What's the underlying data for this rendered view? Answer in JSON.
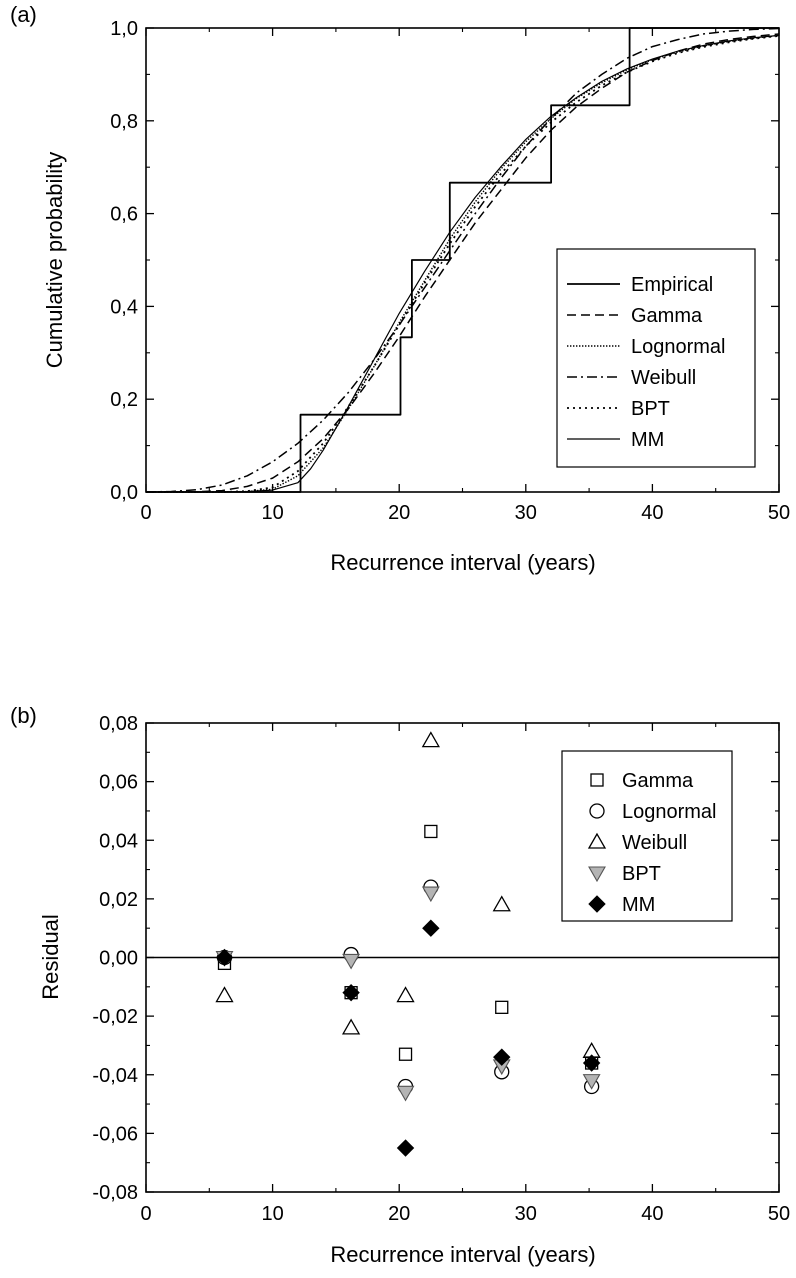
{
  "chart_data": [
    {
      "panel": "(a)",
      "type": "line",
      "xlabel": "Recurrence interval (years)",
      "ylabel": "Cumulative probability",
      "xlim": [
        0,
        50
      ],
      "ylim": [
        0,
        1
      ],
      "xticks": [
        0,
        10,
        20,
        30,
        40,
        50
      ],
      "xtick_labels": [
        "0",
        "10",
        "20",
        "30",
        "40",
        "50"
      ],
      "yticks": [
        0,
        0.2,
        0.4,
        0.6,
        0.8,
        1.0
      ],
      "ytick_labels": [
        "0,0",
        "0,2",
        "0,4",
        "0,6",
        "0,8",
        "1,0"
      ],
      "legend_position": "right",
      "series": [
        {
          "name": "Empirical",
          "style": "step",
          "x": [
            0,
            12.2,
            12.2,
            20.1,
            20.1,
            21,
            21,
            24,
            24,
            32,
            32,
            38.2,
            38.2,
            50
          ],
          "y": [
            0,
            0,
            0.1667,
            0.1667,
            0.3333,
            0.3333,
            0.5,
            0.5,
            0.6667,
            0.6667,
            0.8333,
            0.8333,
            1.0,
            1.0
          ]
        },
        {
          "name": "Gamma",
          "style": "dash",
          "x": [
            0,
            4,
            6,
            8,
            10,
            12,
            14,
            16,
            18,
            20,
            22,
            24,
            26,
            28,
            30,
            32,
            34,
            36,
            38,
            40,
            42,
            44,
            46,
            48,
            50
          ],
          "y": [
            0,
            0.0005,
            0.003,
            0.012,
            0.03,
            0.065,
            0.115,
            0.18,
            0.255,
            0.335,
            0.42,
            0.5,
            0.58,
            0.65,
            0.72,
            0.78,
            0.83,
            0.87,
            0.905,
            0.93,
            0.95,
            0.965,
            0.975,
            0.982,
            0.987
          ]
        },
        {
          "name": "Lognormal",
          "style": "dot-fine",
          "x": [
            0,
            6,
            8,
            10,
            12,
            14,
            16,
            18,
            20,
            22,
            24,
            26,
            28,
            30,
            32,
            34,
            36,
            38,
            40,
            42,
            44,
            46,
            48,
            50
          ],
          "y": [
            0,
            0,
            0.001,
            0.006,
            0.035,
            0.095,
            0.18,
            0.27,
            0.365,
            0.455,
            0.545,
            0.625,
            0.695,
            0.755,
            0.805,
            0.848,
            0.882,
            0.91,
            0.932,
            0.948,
            0.961,
            0.971,
            0.978,
            0.984
          ]
        },
        {
          "name": "Weibull",
          "style": "dash-dot",
          "x": [
            0,
            2,
            4,
            6,
            8,
            10,
            12,
            14,
            16,
            18,
            20,
            22,
            24,
            26,
            28,
            30,
            32,
            34,
            36,
            38,
            40,
            42,
            44,
            46,
            48,
            50
          ],
          "y": [
            0,
            0.001,
            0.005,
            0.015,
            0.035,
            0.065,
            0.105,
            0.155,
            0.215,
            0.285,
            0.36,
            0.44,
            0.52,
            0.6,
            0.675,
            0.745,
            0.805,
            0.86,
            0.9,
            0.935,
            0.96,
            0.975,
            0.987,
            0.993,
            0.997,
            0.999
          ]
        },
        {
          "name": "BPT",
          "style": "dot",
          "x": [
            0,
            6,
            8,
            10,
            12,
            14,
            16,
            18,
            20,
            22,
            24,
            26,
            28,
            30,
            32,
            34,
            36,
            38,
            40,
            42,
            44,
            46,
            48,
            50
          ],
          "y": [
            0,
            0,
            0.002,
            0.01,
            0.045,
            0.105,
            0.185,
            0.27,
            0.36,
            0.45,
            0.535,
            0.615,
            0.685,
            0.745,
            0.797,
            0.84,
            0.876,
            0.905,
            0.928,
            0.946,
            0.959,
            0.969,
            0.977,
            0.983
          ]
        },
        {
          "name": "MM",
          "style": "solid-thin",
          "x": [
            0,
            6,
            8,
            10,
            12,
            13,
            14,
            16,
            18,
            20,
            22,
            24,
            26,
            28,
            30,
            32,
            34,
            36,
            38,
            40,
            42,
            44,
            46,
            48,
            50
          ],
          "y": [
            0,
            0,
            0.001,
            0.004,
            0.02,
            0.05,
            0.09,
            0.185,
            0.285,
            0.385,
            0.475,
            0.56,
            0.635,
            0.7,
            0.76,
            0.81,
            0.85,
            0.885,
            0.912,
            0.933,
            0.95,
            0.962,
            0.972,
            0.979,
            0.984
          ]
        }
      ]
    },
    {
      "panel": "(b)",
      "type": "scatter",
      "xlabel": "Recurrence interval (years)",
      "ylabel": "Residual",
      "xlim": [
        0,
        50
      ],
      "ylim": [
        -0.08,
        0.08
      ],
      "xticks": [
        0,
        10,
        20,
        30,
        40,
        50
      ],
      "xtick_labels": [
        "0",
        "10",
        "20",
        "30",
        "40",
        "50"
      ],
      "yticks": [
        -0.08,
        -0.06,
        -0.04,
        -0.02,
        0,
        0.02,
        0.04,
        0.06,
        0.08
      ],
      "ytick_labels": [
        "-0,08",
        "-0,06",
        "-0,04",
        "-0,02",
        "0,00",
        "0,02",
        "0,04",
        "0,06",
        "0,08"
      ],
      "reference_line_y": 0,
      "legend_position": "top-right",
      "series": [
        {
          "name": "Gamma",
          "marker": "square-open",
          "x": [
            6.2,
            16.2,
            20.5,
            22.5,
            28.1,
            35.2
          ],
          "y": [
            -0.002,
            -0.012,
            -0.033,
            0.043,
            -0.017,
            -0.036
          ]
        },
        {
          "name": "Lognormal",
          "marker": "circle-open",
          "x": [
            6.2,
            16.2,
            20.5,
            22.5,
            28.1,
            35.2
          ],
          "y": [
            0,
            0.001,
            -0.044,
            0.024,
            -0.039,
            -0.044
          ]
        },
        {
          "name": "Weibull",
          "marker": "triangle-up-open",
          "x": [
            6.2,
            16.2,
            20.5,
            22.5,
            28.1,
            35.2
          ],
          "y": [
            -0.013,
            -0.024,
            -0.013,
            0.074,
            0.018,
            -0.032
          ]
        },
        {
          "name": "BPT",
          "marker": "triangle-down-gray",
          "x": [
            6.2,
            16.2,
            20.5,
            22.5,
            28.1,
            35.2
          ],
          "y": [
            0,
            -0.001,
            -0.046,
            0.022,
            -0.037,
            -0.042
          ]
        },
        {
          "name": "MM",
          "marker": "diamond-filled",
          "x": [
            6.2,
            16.2,
            20.5,
            22.5,
            28.1,
            35.2
          ],
          "y": [
            0,
            -0.012,
            -0.065,
            0.01,
            -0.034,
            -0.036
          ]
        }
      ]
    }
  ]
}
